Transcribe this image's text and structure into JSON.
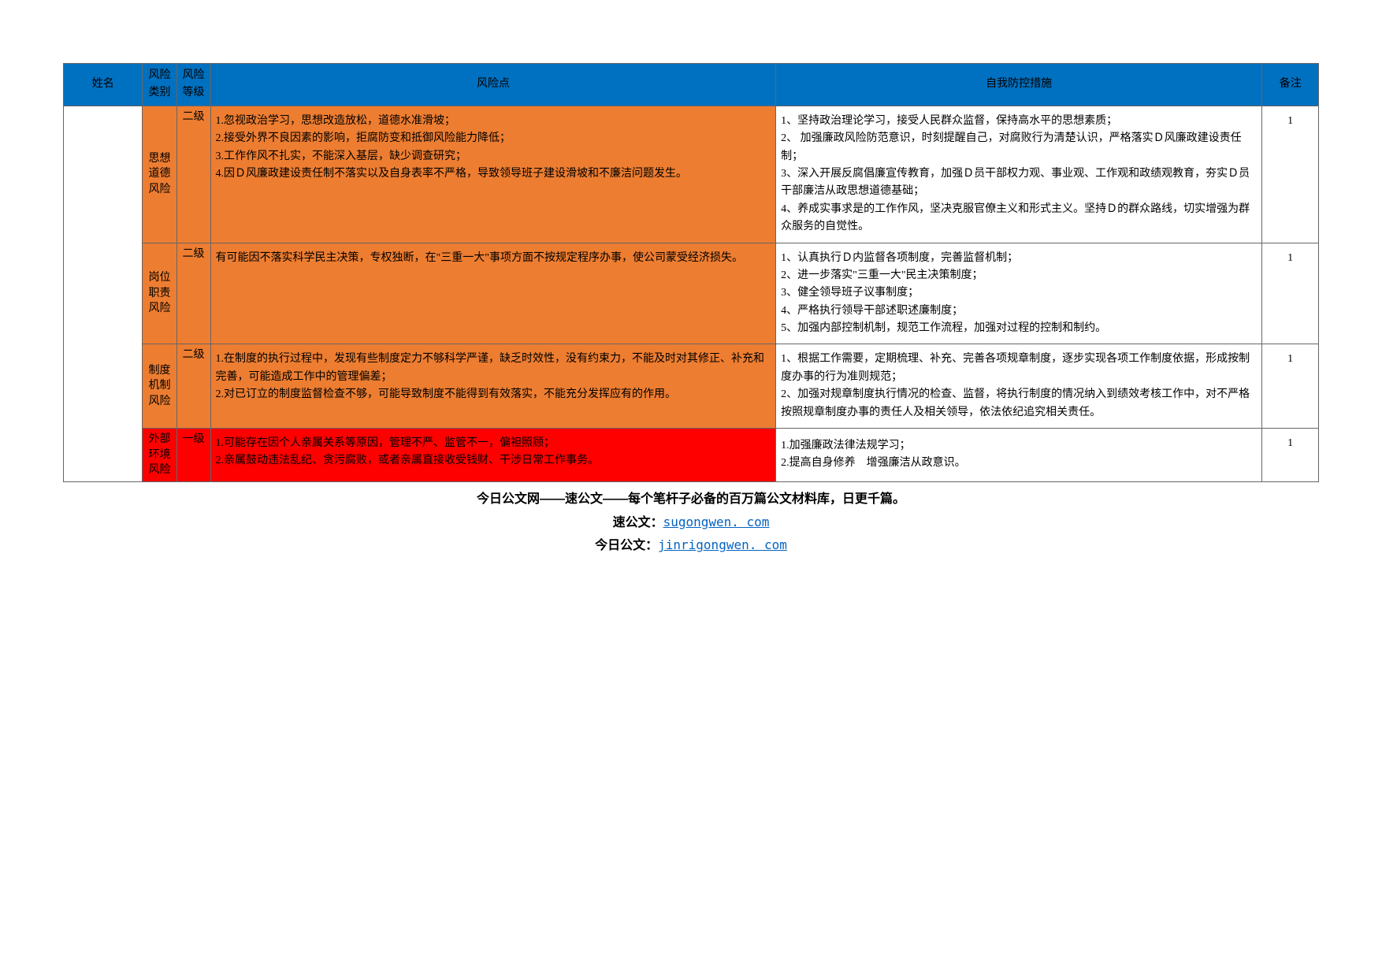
{
  "headers": {
    "name": "姓名",
    "category": "风险类别",
    "level": "风险等级",
    "risk": "风险点",
    "measure": "自我防控措施",
    "note": "备注"
  },
  "colors": {
    "header_bg": "#0070c0",
    "orange": "#ed7d31",
    "red": "#ff0000",
    "border": "#666666"
  },
  "rows": [
    {
      "category": "思想道德风险",
      "level": "二级",
      "cat_bg": "orange",
      "level_bg": "orange",
      "risk_bg": "orange",
      "risk": "1.忽视政治学习，思想改造放松，道德水准滑坡；\n2.接受外界不良因素的影响，拒腐防变和抵御风险能力降低；\n3.工作作风不扎实，不能深入基层，缺少调查研究；\n4.因Ｄ风廉政建设责任制不落实以及自身表率不严格，导致领导班子建设滑坡和不廉洁问题发生。",
      "measure": "1、坚持政治理论学习，接受人民群众监督，保持高水平的思想素质；\n2、 加强廉政风险防范意识，时刻提醒自己，对腐败行为清楚认识，严格落实Ｄ风廉政建设责任制；\n3、深入开展反腐倡廉宣传教育，加强Ｄ员干部权力观、事业观、工作观和政绩观教育，夯实Ｄ员干部廉洁从政思想道德基础；\n4、养成实事求是的工作作风，坚决克服官僚主义和形式主义。坚持Ｄ的群众路线，切实增强为群众服务的自觉性。",
      "note": "1"
    },
    {
      "category": "岗位职责风险",
      "level": "二级",
      "cat_bg": "orange",
      "level_bg": "orange",
      "risk_bg": "orange",
      "risk": "有可能因不落实科学民主决策，专权独断，在\"三重一大\"事项方面不按规定程序办事，使公司蒙受经济损失。",
      "measure": "1、认真执行Ｄ内监督各项制度，完善监督机制；\n2、进一步落实\"三重一大\"民主决策制度；\n3、健全领导班子议事制度；\n4、严格执行领导干部述职述廉制度；\n5、加强内部控制机制，规范工作流程，加强对过程的控制和制约。",
      "note": "1"
    },
    {
      "category": "制度机制风险",
      "level": "二级",
      "cat_bg": "orange",
      "level_bg": "orange",
      "risk_bg": "orange",
      "risk": "1.在制度的执行过程中，发现有些制度定力不够科学严谨，缺乏时效性，没有约束力，不能及时对其修正、补充和完善，可能造成工作中的管理偏差；\n2.对已订立的制度监督检查不够，可能导致制度不能得到有效落实，不能充分发挥应有的作用。",
      "measure": "1、根据工作需要，定期梳理、补充、完善各项规章制度，逐步实现各项工作制度依据，形成按制度办事的行为准则规范；\n2、加强对规章制度执行情况的检查、监督，将执行制度的情况纳入到绩效考核工作中，对不严格按照规章制度办事的责任人及相关领导，依法依纪追究相关责任。",
      "note": "1"
    },
    {
      "category": "外部环境风险",
      "level": "一级",
      "cat_bg": "red",
      "level_bg": "red",
      "risk_bg": "red",
      "risk": "1.可能存在因个人亲属关系等原因，管理不严、监管不一，偏袒照顾；\n2.亲属鼓动违法乱纪、贪污腐败，或者亲属直接收受钱财、干涉日常工作事务。",
      "measure": "1.加强廉政法律法规学习；\n2.提高自身修养　增强廉洁从政意识。",
      "note": "1"
    }
  ],
  "footer": {
    "line1": "今日公文网——速公文——每个笔杆子必备的百万篇公文材料库，日更千篇。",
    "line2_label": "速公文：",
    "line2_link": "sugongwen. com",
    "line3_label": "今日公文：",
    "line3_link": "jinrigongwen. com"
  }
}
